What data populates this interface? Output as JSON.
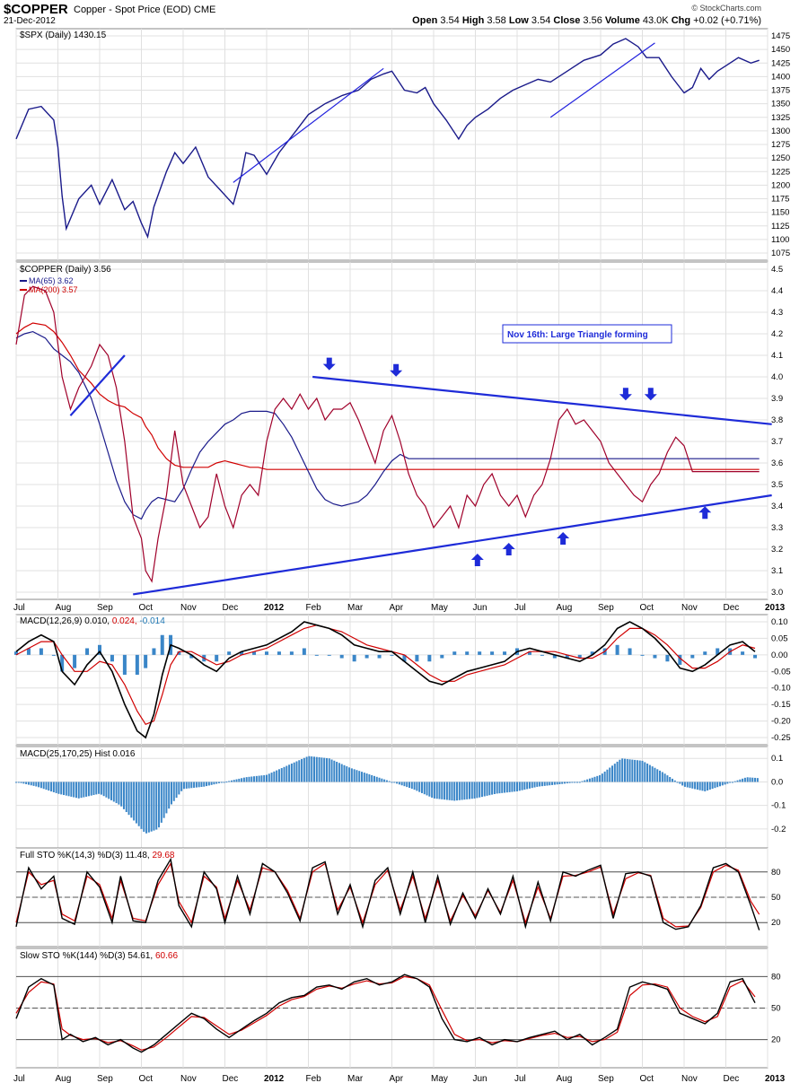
{
  "header": {
    "symbol": "$COPPER",
    "description": "Copper - Spot Price (EOD)",
    "exchange": "CME",
    "date": "21-Dec-2012",
    "open_label": "Open",
    "open": "3.54",
    "high_label": "High",
    "high": "3.58",
    "low_label": "Low",
    "low": "3.54",
    "close_label": "Close",
    "close": "3.56",
    "volume_label": "Volume",
    "volume": "43.0K",
    "chg_label": "Chg",
    "chg": "+0.02 (+0.71%)",
    "copyright": "© StockCharts.com"
  },
  "x_axis": {
    "labels": [
      "Jul",
      "Aug",
      "Sep",
      "Oct",
      "Nov",
      "Dec",
      "2012",
      "Feb",
      "Mar",
      "Apr",
      "May",
      "Jun",
      "Jul",
      "Aug",
      "Sep",
      "Oct",
      "Nov",
      "Dec",
      "2013"
    ]
  },
  "chart_data": [
    {
      "type": "line",
      "panel": "spx",
      "title": "$SPX (Daily) 1430.15",
      "x_months": [
        0,
        0.3,
        0.6,
        0.9,
        1.0,
        1.1,
        1.2,
        1.5,
        1.8,
        2.0,
        2.3,
        2.6,
        2.8,
        3.0,
        3.15,
        3.3,
        3.6,
        3.8,
        4.0,
        4.3,
        4.6,
        4.9,
        5.2,
        5.4,
        5.5,
        5.7,
        6.0,
        6.3,
        6.7,
        7.0,
        7.4,
        7.8,
        8.2,
        8.5,
        8.8,
        9.0,
        9.3,
        9.6,
        9.8,
        10.0,
        10.3,
        10.6,
        10.8,
        11.0,
        11.3,
        11.6,
        11.9,
        12.2,
        12.5,
        12.8,
        13.2,
        13.6,
        14.0,
        14.3,
        14.6,
        14.9,
        15.1,
        15.4,
        15.7,
        16.0,
        16.2,
        16.4,
        16.6,
        16.8,
        17.0,
        17.3,
        17.6,
        17.8
      ],
      "values": [
        1285,
        1340,
        1345,
        1320,
        1270,
        1180,
        1120,
        1175,
        1200,
        1165,
        1210,
        1155,
        1170,
        1130,
        1105,
        1160,
        1225,
        1260,
        1240,
        1270,
        1215,
        1190,
        1165,
        1220,
        1260,
        1255,
        1220,
        1260,
        1300,
        1330,
        1350,
        1365,
        1375,
        1395,
        1405,
        1410,
        1375,
        1370,
        1380,
        1350,
        1320,
        1285,
        1310,
        1325,
        1340,
        1360,
        1375,
        1385,
        1395,
        1390,
        1410,
        1430,
        1440,
        1460,
        1470,
        1455,
        1435,
        1435,
        1400,
        1370,
        1380,
        1415,
        1395,
        1410,
        1420,
        1435,
        1425,
        1430
      ],
      "ylim": [
        1075,
        1475
      ],
      "y_ticks": [
        1075,
        1100,
        1125,
        1150,
        1175,
        1200,
        1225,
        1250,
        1275,
        1300,
        1325,
        1350,
        1375,
        1400,
        1425,
        1450,
        1475
      ],
      "trendlines": [
        {
          "x": [
            5.2,
            8.8
          ],
          "y": [
            1205,
            1415
          ]
        },
        {
          "x": [
            12.8,
            15.3
          ],
          "y": [
            1325,
            1462
          ]
        }
      ]
    },
    {
      "type": "line",
      "panel": "copper",
      "title": "$COPPER (Daily) 3.56",
      "legend": [
        {
          "name": "MA(65) 3.62",
          "color": "#1a1a8a"
        },
        {
          "name": "MA(200) 3.57",
          "color": "#d00000"
        }
      ],
      "x_months": [
        0,
        0.2,
        0.4,
        0.7,
        0.9,
        1.1,
        1.3,
        1.5,
        1.8,
        2.0,
        2.2,
        2.4,
        2.6,
        2.8,
        3.0,
        3.1,
        3.25,
        3.4,
        3.6,
        3.8,
        4.0,
        4.2,
        4.4,
        4.6,
        4.8,
        5.0,
        5.2,
        5.4,
        5.6,
        5.8,
        6.0,
        6.2,
        6.4,
        6.6,
        6.8,
        7.0,
        7.2,
        7.4,
        7.6,
        7.8,
        8.0,
        8.2,
        8.4,
        8.6,
        8.8,
        9.0,
        9.2,
        9.4,
        9.6,
        9.8,
        10.0,
        10.2,
        10.4,
        10.6,
        10.8,
        11.0,
        11.2,
        11.4,
        11.6,
        11.8,
        12.0,
        12.2,
        12.4,
        12.6,
        12.8,
        13.0,
        13.2,
        13.4,
        13.6,
        13.8,
        14.0,
        14.2,
        14.4,
        14.6,
        14.8,
        15.0,
        15.2,
        15.4,
        15.6,
        15.8,
        16.0,
        16.2,
        16.4,
        16.6,
        16.8,
        17.0,
        17.2,
        17.4,
        17.6,
        17.8
      ],
      "close": [
        4.15,
        4.38,
        4.42,
        4.4,
        4.3,
        4.0,
        3.85,
        3.95,
        4.05,
        4.15,
        4.1,
        3.95,
        3.7,
        3.35,
        3.25,
        3.1,
        3.05,
        3.25,
        3.45,
        3.75,
        3.5,
        3.4,
        3.3,
        3.35,
        3.55,
        3.4,
        3.3,
        3.45,
        3.5,
        3.45,
        3.7,
        3.85,
        3.9,
        3.85,
        3.92,
        3.85,
        3.9,
        3.8,
        3.85,
        3.85,
        3.88,
        3.8,
        3.7,
        3.6,
        3.75,
        3.82,
        3.7,
        3.55,
        3.45,
        3.4,
        3.3,
        3.35,
        3.4,
        3.3,
        3.45,
        3.4,
        3.5,
        3.55,
        3.45,
        3.4,
        3.45,
        3.35,
        3.45,
        3.5,
        3.62,
        3.8,
        3.85,
        3.78,
        3.8,
        3.75,
        3.7,
        3.6,
        3.55,
        3.5,
        3.45,
        3.42,
        3.5,
        3.55,
        3.65,
        3.72,
        3.68,
        3.56,
        3.56,
        3.56,
        3.56,
        3.56,
        3.56,
        3.56,
        3.56,
        3.56
      ],
      "ma65": [
        4.18,
        4.2,
        4.21,
        4.18,
        4.13,
        4.1,
        4.07,
        4.02,
        3.9,
        3.78,
        3.65,
        3.52,
        3.42,
        3.36,
        3.34,
        3.38,
        3.42,
        3.44,
        3.43,
        3.42,
        3.48,
        3.57,
        3.65,
        3.7,
        3.74,
        3.78,
        3.8,
        3.83,
        3.84,
        3.84,
        3.84,
        3.83,
        3.78,
        3.72,
        3.64,
        3.56,
        3.48,
        3.43,
        3.41,
        3.4,
        3.41,
        3.42,
        3.45,
        3.5,
        3.56,
        3.61,
        3.64,
        3.62,
        3.62,
        3.62,
        3.62,
        3.62,
        3.62,
        3.62,
        3.62,
        3.62,
        3.62,
        3.62,
        3.62,
        3.62,
        3.62,
        3.62,
        3.62,
        3.62,
        3.62,
        3.62,
        3.62,
        3.62,
        3.62,
        3.62,
        3.62,
        3.62,
        3.62,
        3.62,
        3.62,
        3.62,
        3.62,
        3.62,
        3.62,
        3.62,
        3.62,
        3.62,
        3.62,
        3.62,
        3.62,
        3.62,
        3.62,
        3.62,
        3.62,
        3.62
      ],
      "ma200": [
        4.2,
        4.23,
        4.25,
        4.24,
        4.21,
        4.16,
        4.1,
        4.03,
        3.97,
        3.92,
        3.89,
        3.87,
        3.86,
        3.83,
        3.81,
        3.77,
        3.73,
        3.67,
        3.62,
        3.59,
        3.58,
        3.58,
        3.58,
        3.58,
        3.6,
        3.61,
        3.6,
        3.59,
        3.58,
        3.58,
        3.57,
        3.57,
        3.57,
        3.57,
        3.57,
        3.57,
        3.57,
        3.57,
        3.57,
        3.57,
        3.57,
        3.57,
        3.57,
        3.57,
        3.57,
        3.57,
        3.57,
        3.57,
        3.57,
        3.57,
        3.57,
        3.57,
        3.57,
        3.57,
        3.57,
        3.57,
        3.57,
        3.57,
        3.57,
        3.57,
        3.57,
        3.57,
        3.57,
        3.57,
        3.57,
        3.57,
        3.57,
        3.57,
        3.57,
        3.57,
        3.57,
        3.57,
        3.57,
        3.57,
        3.57,
        3.57,
        3.57,
        3.57,
        3.57,
        3.57,
        3.57,
        3.57,
        3.57,
        3.57,
        3.57,
        3.57,
        3.57,
        3.57,
        3.57,
        3.57
      ],
      "ylim": [
        3.0,
        4.5
      ],
      "y_ticks": [
        3.0,
        3.1,
        3.2,
        3.3,
        3.4,
        3.5,
        3.6,
        3.7,
        3.8,
        3.9,
        4.0,
        4.1,
        4.2,
        4.3,
        4.4,
        4.5
      ],
      "annotation": "Nov 16th: Large Triangle forming",
      "trendlines": [
        {
          "x": [
            7.1,
            18.1
          ],
          "y": [
            4.0,
            3.78
          ]
        },
        {
          "x": [
            2.8,
            18.1
          ],
          "y": [
            2.99,
            3.45
          ]
        },
        {
          "x": [
            1.3,
            2.6
          ],
          "y": [
            3.82,
            4.1
          ]
        }
      ],
      "down_arrows": [
        {
          "x": 7.5,
          "y": 4.06
        },
        {
          "x": 9.1,
          "y": 4.03
        },
        {
          "x": 14.6,
          "y": 3.92
        },
        {
          "x": 15.2,
          "y": 3.92
        }
      ],
      "up_arrows": [
        {
          "x": 11.05,
          "y": 3.15
        },
        {
          "x": 11.8,
          "y": 3.2
        },
        {
          "x": 13.1,
          "y": 3.25
        },
        {
          "x": 16.5,
          "y": 3.37
        }
      ]
    },
    {
      "type": "line",
      "panel": "macd1",
      "title": "MACD(12,26,9)",
      "title_values": [
        "0.010",
        "0.024",
        "-0.014"
      ],
      "ylim": [
        -0.25,
        0.1
      ],
      "y_ticks": [
        -0.25,
        -0.2,
        -0.15,
        -0.1,
        -0.05,
        0.0,
        0.05,
        0.1
      ],
      "x_months": [
        0,
        0.3,
        0.6,
        0.9,
        1.1,
        1.4,
        1.7,
        2.0,
        2.3,
        2.6,
        2.9,
        3.1,
        3.3,
        3.5,
        3.7,
        3.9,
        4.2,
        4.5,
        4.8,
        5.1,
        5.4,
        5.7,
        6.0,
        6.3,
        6.6,
        6.9,
        7.2,
        7.5,
        7.8,
        8.1,
        8.4,
        8.7,
        9.0,
        9.3,
        9.6,
        9.9,
        10.2,
        10.5,
        10.8,
        11.1,
        11.4,
        11.7,
        12.0,
        12.3,
        12.6,
        12.9,
        13.2,
        13.5,
        13.8,
        14.1,
        14.4,
        14.7,
        15.0,
        15.3,
        15.6,
        15.9,
        16.2,
        16.5,
        16.8,
        17.1,
        17.4,
        17.7
      ],
      "macd": [
        0.01,
        0.04,
        0.06,
        0.04,
        -0.05,
        -0.09,
        -0.03,
        0.01,
        -0.05,
        -0.15,
        -0.23,
        -0.25,
        -0.18,
        -0.06,
        0.03,
        0.02,
        0.0,
        -0.03,
        -0.05,
        -0.01,
        0.01,
        0.02,
        0.03,
        0.05,
        0.07,
        0.1,
        0.09,
        0.08,
        0.06,
        0.03,
        0.02,
        0.01,
        0.01,
        -0.02,
        -0.05,
        -0.08,
        -0.09,
        -0.07,
        -0.05,
        -0.04,
        -0.03,
        -0.02,
        0.01,
        0.02,
        0.01,
        0.0,
        -0.01,
        -0.02,
        0.0,
        0.03,
        0.08,
        0.1,
        0.08,
        0.05,
        0.01,
        -0.04,
        -0.05,
        -0.03,
        0.0,
        0.03,
        0.04,
        0.01
      ],
      "signal": [
        0.0,
        0.02,
        0.04,
        0.04,
        0.0,
        -0.05,
        -0.05,
        -0.02,
        -0.03,
        -0.09,
        -0.17,
        -0.21,
        -0.2,
        -0.12,
        -0.03,
        0.01,
        0.01,
        -0.01,
        -0.03,
        -0.02,
        0.0,
        0.01,
        0.02,
        0.04,
        0.06,
        0.08,
        0.09,
        0.08,
        0.07,
        0.05,
        0.03,
        0.02,
        0.01,
        0.0,
        -0.03,
        -0.06,
        -0.08,
        -0.08,
        -0.06,
        -0.05,
        -0.04,
        -0.03,
        -0.01,
        0.01,
        0.01,
        0.01,
        0.0,
        -0.01,
        -0.01,
        0.01,
        0.05,
        0.08,
        0.08,
        0.06,
        0.03,
        -0.01,
        -0.04,
        -0.04,
        -0.02,
        0.01,
        0.03,
        0.02
      ]
    },
    {
      "type": "bar",
      "panel": "macd2",
      "title": "MACD(25,170,25) Hist 0.016",
      "ylim": [
        -0.25,
        0.12
      ],
      "y_ticks": [
        -0.2,
        -0.1,
        0.0,
        0.1
      ],
      "x_months": [
        0,
        0.5,
        1.0,
        1.5,
        2.0,
        2.5,
        2.8,
        3.1,
        3.4,
        3.7,
        4.0,
        4.5,
        5.0,
        5.5,
        6.0,
        6.5,
        7.0,
        7.5,
        8.0,
        8.5,
        9.0,
        9.5,
        10.0,
        10.5,
        11.0,
        11.5,
        12.0,
        12.5,
        13.0,
        13.5,
        14.0,
        14.5,
        15.0,
        15.5,
        16.0,
        16.5,
        17.0,
        17.5,
        17.8
      ],
      "values": [
        0.0,
        -0.02,
        -0.05,
        -0.07,
        -0.05,
        -0.1,
        -0.16,
        -0.22,
        -0.2,
        -0.1,
        -0.03,
        -0.02,
        0.0,
        0.02,
        0.03,
        0.07,
        0.11,
        0.1,
        0.06,
        0.03,
        0.0,
        -0.03,
        -0.07,
        -0.08,
        -0.07,
        -0.05,
        -0.04,
        -0.02,
        -0.01,
        0.0,
        0.03,
        0.1,
        0.09,
        0.04,
        -0.02,
        -0.04,
        -0.01,
        0.02,
        0.016
      ]
    },
    {
      "type": "line",
      "panel": "fullsto",
      "title": "Full STO %K(14,3) %D(3)",
      "title_values": [
        "11.48",
        "29.68"
      ],
      "ylim": [
        0,
        100
      ],
      "y_ticks": [
        20,
        50,
        80
      ],
      "x_months": [
        0,
        0.3,
        0.6,
        0.9,
        1.1,
        1.4,
        1.7,
        2.0,
        2.3,
        2.5,
        2.8,
        3.1,
        3.4,
        3.7,
        3.9,
        4.2,
        4.5,
        4.8,
        5.0,
        5.3,
        5.6,
        5.9,
        6.2,
        6.5,
        6.8,
        7.1,
        7.4,
        7.7,
        8.0,
        8.3,
        8.6,
        8.9,
        9.2,
        9.5,
        9.8,
        10.1,
        10.4,
        10.7,
        11.0,
        11.3,
        11.6,
        11.9,
        12.2,
        12.5,
        12.8,
        13.1,
        13.4,
        13.7,
        14.0,
        14.3,
        14.6,
        14.9,
        15.2,
        15.5,
        15.8,
        16.1,
        16.4,
        16.7,
        17.0,
        17.3,
        17.6,
        17.8
      ],
      "k": [
        15,
        85,
        60,
        75,
        25,
        18,
        80,
        62,
        20,
        75,
        22,
        20,
        70,
        95,
        40,
        15,
        80,
        60,
        20,
        75,
        30,
        90,
        80,
        55,
        22,
        85,
        92,
        30,
        65,
        15,
        70,
        85,
        30,
        80,
        20,
        75,
        18,
        55,
        25,
        60,
        30,
        75,
        15,
        68,
        22,
        80,
        75,
        82,
        88,
        25,
        78,
        80,
        75,
        20,
        12,
        15,
        40,
        85,
        90,
        80,
        40,
        11
      ],
      "d": [
        20,
        80,
        65,
        70,
        30,
        22,
        75,
        65,
        25,
        70,
        25,
        22,
        65,
        90,
        45,
        20,
        75,
        62,
        25,
        70,
        35,
        85,
        80,
        58,
        25,
        80,
        90,
        35,
        62,
        20,
        65,
        82,
        35,
        75,
        25,
        70,
        22,
        52,
        28,
        58,
        32,
        70,
        20,
        62,
        25,
        75,
        76,
        80,
        86,
        30,
        72,
        79,
        76,
        25,
        15,
        16,
        38,
        80,
        88,
        82,
        45,
        29.68
      ]
    },
    {
      "type": "line",
      "panel": "slowsto",
      "title": "Slow STO %K(144) %D(3)",
      "title_values": [
        "54.61",
        "60.66"
      ],
      "ylim": [
        0,
        100
      ],
      "y_ticks": [
        20,
        50,
        80
      ],
      "x_months": [
        0,
        0.3,
        0.6,
        0.9,
        1.1,
        1.3,
        1.6,
        1.9,
        2.2,
        2.5,
        2.8,
        3.0,
        3.3,
        3.6,
        3.9,
        4.2,
        4.5,
        4.8,
        5.1,
        5.4,
        5.7,
        6.0,
        6.3,
        6.6,
        6.9,
        7.2,
        7.5,
        7.8,
        8.1,
        8.4,
        8.7,
        9.0,
        9.3,
        9.6,
        9.9,
        10.2,
        10.5,
        10.8,
        11.1,
        11.4,
        11.7,
        12.0,
        12.3,
        12.6,
        12.9,
        13.2,
        13.5,
        13.8,
        14.1,
        14.4,
        14.7,
        15.0,
        15.3,
        15.6,
        15.9,
        16.2,
        16.5,
        16.8,
        17.1,
        17.4,
        17.7
      ],
      "k": [
        40,
        70,
        78,
        72,
        20,
        25,
        18,
        22,
        15,
        20,
        12,
        8,
        15,
        25,
        35,
        45,
        40,
        30,
        22,
        30,
        38,
        45,
        55,
        60,
        62,
        70,
        72,
        68,
        75,
        78,
        72,
        75,
        82,
        78,
        70,
        40,
        20,
        18,
        22,
        15,
        20,
        18,
        22,
        25,
        28,
        20,
        25,
        15,
        22,
        30,
        70,
        75,
        72,
        68,
        45,
        40,
        35,
        45,
        75,
        78,
        55
      ],
      "d": [
        45,
        65,
        75,
        73,
        30,
        24,
        20,
        21,
        17,
        19,
        14,
        10,
        13,
        22,
        32,
        42,
        41,
        33,
        25,
        29,
        36,
        43,
        52,
        58,
        61,
        68,
        71,
        69,
        73,
        76,
        73,
        74,
        80,
        78,
        72,
        48,
        25,
        19,
        20,
        17,
        19,
        18,
        21,
        24,
        26,
        22,
        23,
        18,
        20,
        27,
        62,
        72,
        73,
        70,
        50,
        42,
        37,
        42,
        70,
        76,
        60.66
      ]
    }
  ]
}
